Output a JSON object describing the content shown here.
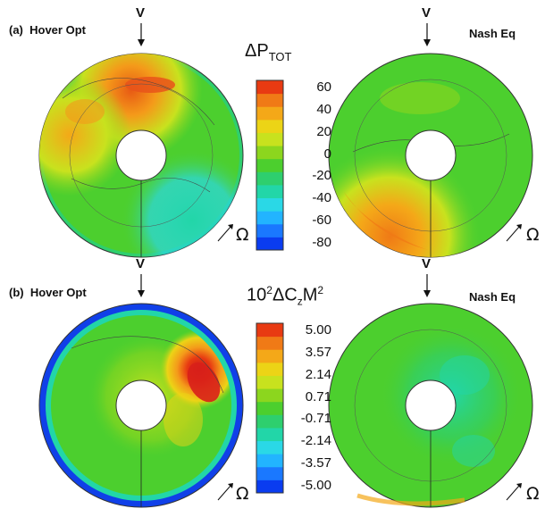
{
  "panels": [
    {
      "row_label": "(a)",
      "left_title": "Hover Opt",
      "right_title": "Nash Eq",
      "colorbar_title_main": "ΔP",
      "colorbar_title_sub": "TOT",
      "colorbar_ticks": [
        "60",
        "40",
        "20",
        "0",
        "-20",
        "-40",
        "-60",
        "-80"
      ]
    },
    {
      "row_label": "(b)",
      "left_title": "Hover Opt",
      "right_title": "Nash Eq",
      "colorbar_title_parts": [
        "10",
        "2",
        "ΔC",
        "z",
        "M",
        "2"
      ],
      "colorbar_ticks": [
        "5.00",
        "3.57",
        "2.14",
        "0.71",
        "-0.71",
        "-2.14",
        "-3.57",
        "-5.00"
      ]
    }
  ],
  "velocity_label": "V",
  "rotation_label": "Ω",
  "colormap": [
    "#0a3cf0",
    "#1a78ff",
    "#22b4ff",
    "#2ad8e6",
    "#22d6a8",
    "#2ecf6e",
    "#4ccf2e",
    "#8cd61e",
    "#c8e21e",
    "#ecd416",
    "#f4a818",
    "#f07a16",
    "#e83a12"
  ]
}
